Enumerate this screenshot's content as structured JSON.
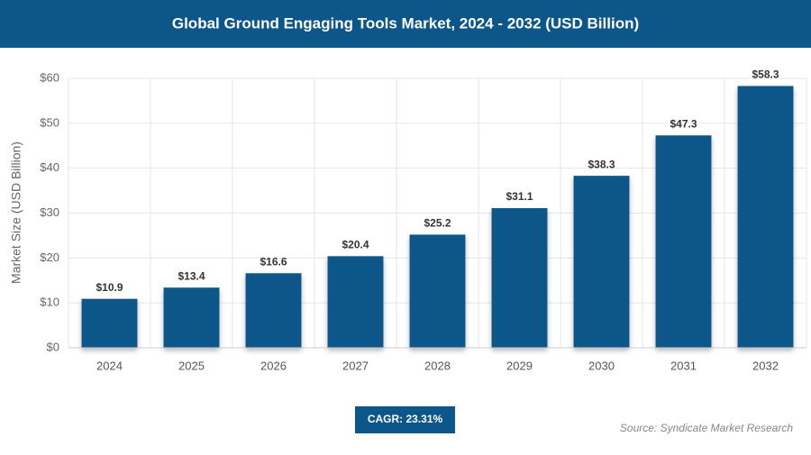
{
  "chart_data": {
    "type": "bar",
    "title": "Global Ground Engaging Tools Market, 2024 - 2032 (USD Billion)",
    "y_axis_label": "Market Size (USD Billion)",
    "categories": [
      "2024",
      "2025",
      "2026",
      "2027",
      "2028",
      "2029",
      "2030",
      "2031",
      "2032"
    ],
    "values": [
      10.9,
      13.4,
      16.6,
      20.4,
      25.2,
      31.1,
      38.3,
      47.3,
      58.3
    ],
    "value_labels": [
      "$10.9",
      "$13.4",
      "$16.6",
      "$20.4",
      "$25.2",
      "$31.1",
      "$38.3",
      "$47.3",
      "$58.3"
    ],
    "color": "#0d5689",
    "ylim": [
      0,
      60
    ],
    "yticks": [
      {
        "value": 0,
        "label": "$0"
      },
      {
        "value": 10,
        "label": "$10"
      },
      {
        "value": 20,
        "label": "$20"
      },
      {
        "value": 30,
        "label": "$30"
      },
      {
        "value": 40,
        "label": "$40"
      },
      {
        "value": 50,
        "label": "$50"
      },
      {
        "value": 60,
        "label": "$60"
      }
    ],
    "grid": true,
    "cagr": "CAGR: 23.31%",
    "source": "Source: Syndicate Market Research"
  }
}
